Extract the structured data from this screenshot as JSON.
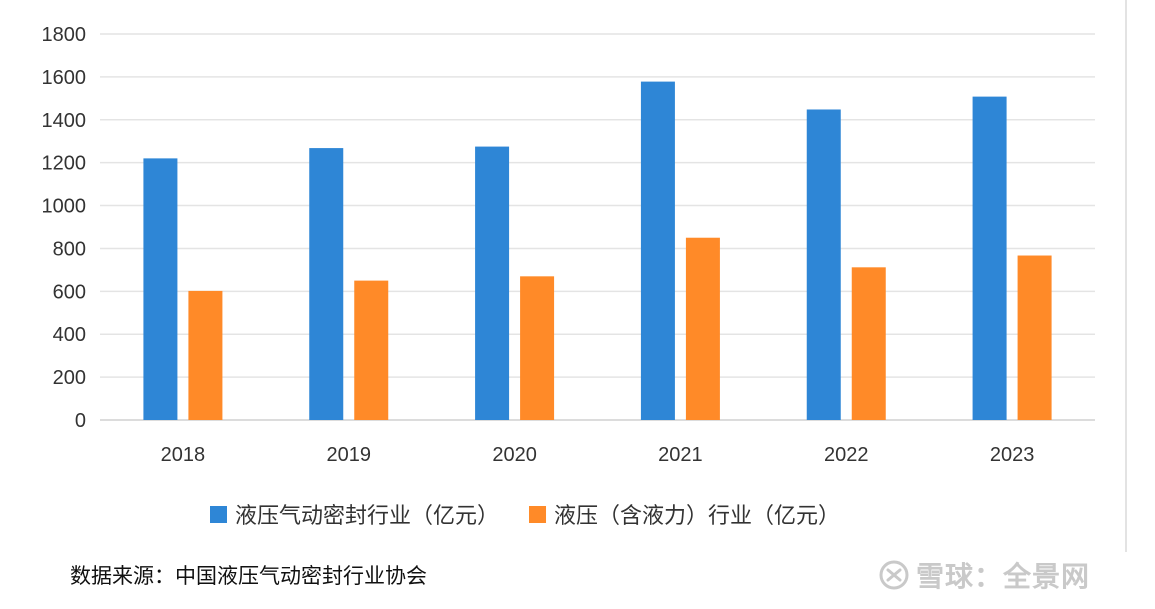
{
  "chart_data": {
    "type": "bar",
    "categories": [
      "2018",
      "2019",
      "2020",
      "2021",
      "2022",
      "2023"
    ],
    "series": [
      {
        "name": "液压气动密封行业（亿元）",
        "color": "#2E86D6",
        "values": [
          1220,
          1268,
          1275,
          1578,
          1448,
          1508
        ]
      },
      {
        "name": "液压（含液力）行业（亿元）",
        "color": "#FF8A28",
        "values": [
          602,
          650,
          670,
          850,
          712,
          767
        ]
      }
    ],
    "ylim": [
      0,
      1800
    ],
    "yticks": [
      "0",
      "200",
      "400",
      "600",
      "800",
      "1000",
      "1200",
      "1400",
      "1600",
      "1800"
    ],
    "grid": true,
    "legend": "bottom"
  },
  "source": "数据来源：中国液压气动密封行业协会",
  "watermark": {
    "text": "雪球：全景网",
    "icon": "xueqiu-logo-icon"
  }
}
